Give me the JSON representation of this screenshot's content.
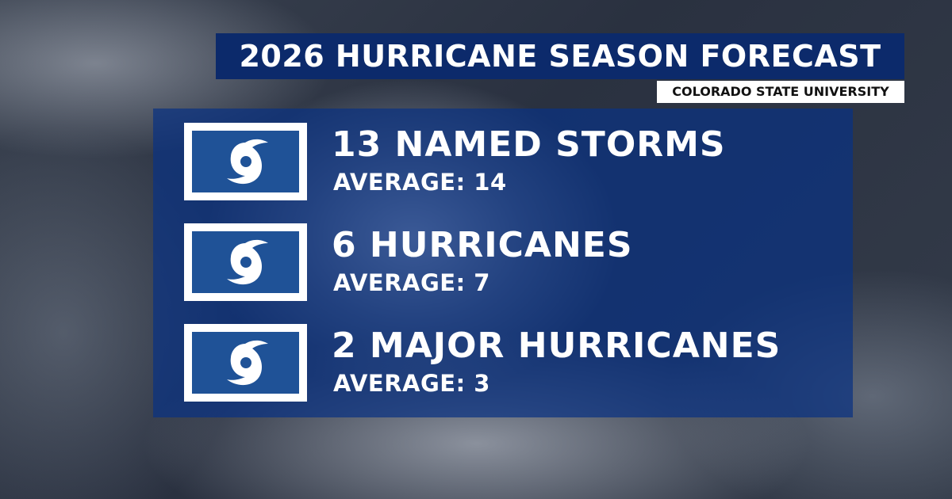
{
  "header": {
    "title": "2026 HURRICANE SEASON FORECAST",
    "source": "COLORADO STATE UNIVERSITY"
  },
  "items": [
    {
      "headline": "13 NAMED STORMS",
      "average": "AVERAGE: 14"
    },
    {
      "headline": "6 HURRICANES",
      "average": "AVERAGE: 7"
    },
    {
      "headline": "2 MAJOR HURRICANES",
      "average": "AVERAGE: 3"
    }
  ]
}
